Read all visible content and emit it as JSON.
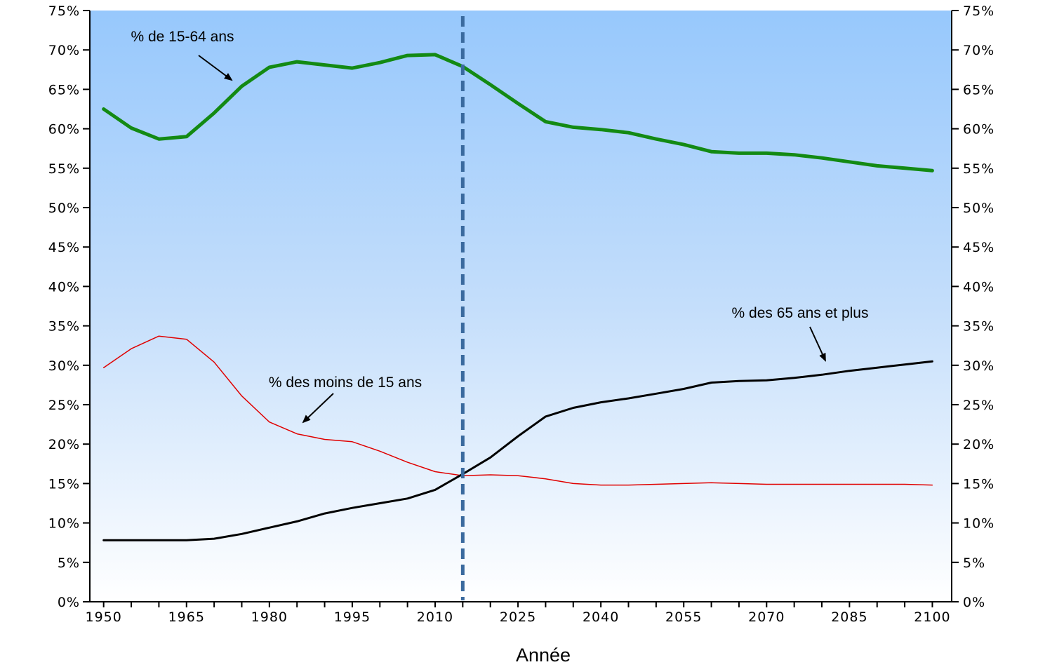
{
  "chart_data": {
    "type": "line",
    "xlabel": "Année",
    "ylabel": "",
    "xlim": [
      1947.5,
      2103.5
    ],
    "ylim": [
      0,
      75
    ],
    "y_ticks": [
      0,
      5,
      10,
      15,
      20,
      25,
      30,
      35,
      40,
      45,
      50,
      55,
      60,
      65,
      70,
      75
    ],
    "y_tick_labels": [
      "0%",
      "5%",
      "10%",
      "15%",
      "20%",
      "25%",
      "30%",
      "35%",
      "40%",
      "45%",
      "50%",
      "55%",
      "60%",
      "65%",
      "70%",
      "75%"
    ],
    "x_ticks": [
      1950,
      1965,
      1980,
      1995,
      2010,
      2025,
      2040,
      2055,
      2070,
      2085,
      2100
    ],
    "x_tick_labels": [
      "1950",
      "1965",
      "1980",
      "1995",
      "2010",
      "2025",
      "2040",
      "2055",
      "2070",
      "2085",
      "2100"
    ],
    "grid": false,
    "secondary_y_axis": true,
    "vertical_marker": {
      "x": 2015,
      "style": "dashed",
      "color": "#3a6a9e"
    },
    "x": [
      1950,
      1955,
      1960,
      1965,
      1970,
      1975,
      1980,
      1985,
      1990,
      1995,
      2000,
      2005,
      2010,
      2015,
      2020,
      2025,
      2030,
      2035,
      2040,
      2045,
      2050,
      2055,
      2060,
      2065,
      2070,
      2075,
      2080,
      2085,
      2090,
      2095,
      2100
    ],
    "series": [
      {
        "color": "#138a13",
        "values": [
          62.5,
          60.1,
          58.7,
          59.0,
          62.0,
          65.4,
          67.8,
          68.5,
          68.1,
          67.7,
          68.4,
          69.3,
          69.4,
          67.9,
          65.6,
          63.2,
          60.9,
          60.2,
          59.9,
          59.5,
          58.7,
          58.0,
          57.1,
          56.9,
          56.9,
          56.7,
          56.3,
          55.8,
          55.3,
          55.0,
          54.7
        ]
      },
      {
        "color": "#e00000",
        "values": [
          29.7,
          32.1,
          33.7,
          33.3,
          30.4,
          26.1,
          22.8,
          21.3,
          20.6,
          20.3,
          19.1,
          17.7,
          16.5,
          16.0,
          16.1,
          16.0,
          15.6,
          15.0,
          14.8,
          14.8,
          14.9,
          15.0,
          15.1,
          15.0,
          14.9,
          14.9,
          14.9,
          14.9,
          14.9,
          14.9,
          14.8
        ]
      },
      {
        "color": "#000000",
        "values": [
          7.8,
          7.8,
          7.8,
          7.8,
          8.0,
          8.6,
          9.4,
          10.2,
          11.2,
          11.9,
          12.5,
          13.1,
          14.2,
          16.2,
          18.3,
          21.0,
          23.5,
          24.6,
          25.3,
          25.8,
          26.4,
          27.0,
          27.8,
          28.0,
          28.1,
          28.4,
          28.8,
          29.3,
          29.7,
          30.1,
          30.5
        ]
      }
    ],
    "annotations": [
      {
        "text": "% de 15-64 ans",
        "color": "#000000"
      },
      {
        "text": "% des moins de 15 ans",
        "color": "#000000"
      },
      {
        "text": "% des 65 ans et plus",
        "color": "#000000"
      }
    ]
  }
}
